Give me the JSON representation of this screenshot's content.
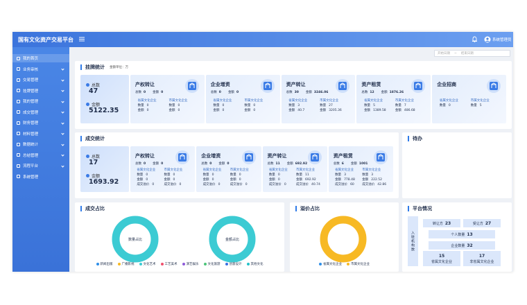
{
  "header": {
    "title": "国有文化资产交易平台",
    "user": "系统管理员"
  },
  "sidebar": {
    "items": [
      "我的首页",
      "业务审核",
      "交易管理",
      "挂牌管理",
      "我的管理",
      "成交管理",
      "财务管理",
      "材料管理",
      "数据统计",
      "总结管理",
      "流程平台",
      "系统管理"
    ]
  },
  "filters": {
    "start": "开始日期",
    "separator": "~",
    "end": "结束日期"
  },
  "listing": {
    "title": "挂牌统计",
    "unit": "金额单位：万",
    "summary": [
      {
        "label": "总数",
        "value": 47
      },
      {
        "label": "金额",
        "value": 5122.35
      }
    ],
    "cards": [
      {
        "name": "产权转让",
        "totals": [
          {
            "label": "总数",
            "value": 0
          },
          {
            "label": "金额",
            "value": 0
          }
        ],
        "groups": [
          {
            "name": "省属文化企业",
            "rows": [
              {
                "label": "数量",
                "value": 0
              },
              {
                "label": "金额",
                "value": 0
              }
            ]
          },
          {
            "name": "市属文化企业",
            "rows": [
              {
                "label": "数量",
                "value": 0
              },
              {
                "label": "金额",
                "value": 0
              }
            ]
          }
        ]
      },
      {
        "name": "企业增资",
        "totals": [
          {
            "label": "总数",
            "value": 0
          },
          {
            "label": "金额",
            "value": 0
          }
        ],
        "groups": [
          {
            "name": "省属文化企业",
            "rows": [
              {
                "label": "数量",
                "value": 0
              },
              {
                "label": "金额",
                "value": 0
              }
            ]
          },
          {
            "name": "市属文化企业",
            "rows": [
              {
                "label": "数量",
                "value": 0
              },
              {
                "label": "金额",
                "value": 0
              }
            ]
          }
        ]
      },
      {
        "name": "资产转让",
        "totals": [
          {
            "label": "总数",
            "value": 30
          },
          {
            "label": "金额",
            "value": 3246.06
          }
        ],
        "groups": [
          {
            "name": "省属文化企业",
            "rows": [
              {
                "label": "数量",
                "value": 3
              },
              {
                "label": "金额",
                "value": 40.7
              }
            ]
          },
          {
            "name": "市属文化企业",
            "rows": [
              {
                "label": "数量",
                "value": 27
              },
              {
                "label": "金额",
                "value": 3205.36
              }
            ]
          }
        ]
      },
      {
        "name": "资产租赁",
        "totals": [
          {
            "label": "总数",
            "value": 12
          },
          {
            "label": "金额",
            "value": 1876.26
          }
        ],
        "groups": [
          {
            "name": "省属文化企业",
            "rows": [
              {
                "label": "数量",
                "value": 5
              },
              {
                "label": "金额",
                "value": 1389.58
              }
            ]
          },
          {
            "name": "市属文化企业",
            "rows": [
              {
                "label": "数量",
                "value": 7
              },
              {
                "label": "金额",
                "value": 486.68
              }
            ]
          }
        ]
      },
      {
        "name": "企业招商",
        "groups": [
          {
            "name": "省属文化企业",
            "rows": [
              {
                "label": "数量",
                "value": 0
              }
            ]
          },
          {
            "name": "市属文化企业",
            "rows": [
              {
                "label": "数量",
                "value": 5
              }
            ]
          }
        ]
      }
    ]
  },
  "deals": {
    "title": "成交统计",
    "unit": "金额单位：万",
    "summary": [
      {
        "label": "总数",
        "value": 17
      },
      {
        "label": "金额",
        "value": 1693.92
      }
    ],
    "cards": [
      {
        "name": "产权转让",
        "totals": [
          {
            "label": "总数",
            "value": 0
          },
          {
            "label": "金额",
            "value": 0
          }
        ],
        "groups": [
          {
            "name": "省属文化企业",
            "rows": [
              {
                "label": "数量",
                "value": 0
              },
              {
                "label": "金额",
                "value": 0
              },
              {
                "label": "成交溢价",
                "value": 0
              }
            ]
          },
          {
            "name": "市属文化企业",
            "rows": [
              {
                "label": "数量",
                "value": 0
              },
              {
                "label": "金额",
                "value": 0
              },
              {
                "label": "成交溢价",
                "value": 0
              }
            ]
          }
        ]
      },
      {
        "name": "企业增资",
        "totals": [
          {
            "label": "总数",
            "value": 0
          },
          {
            "label": "金额",
            "value": 0
          }
        ],
        "groups": [
          {
            "name": "省属文化企业",
            "rows": [
              {
                "label": "数量",
                "value": 0
              },
              {
                "label": "金额",
                "value": 0
              },
              {
                "label": "成交溢价",
                "value": 0
              }
            ]
          },
          {
            "name": "市属文化企业",
            "rows": [
              {
                "label": "数量",
                "value": 0
              },
              {
                "label": "金额",
                "value": 0
              },
              {
                "label": "成交溢价",
                "value": 0
              }
            ]
          }
        ]
      },
      {
        "name": "资产转让",
        "totals": [
          {
            "label": "总数",
            "value": 11
          },
          {
            "label": "金额",
            "value": 692.92
          }
        ],
        "groups": [
          {
            "name": "省属文化企业",
            "rows": [
              {
                "label": "数量",
                "value": 0
              },
              {
                "label": "金额",
                "value": 0
              },
              {
                "label": "成交溢价",
                "value": 0
              }
            ]
          },
          {
            "name": "市属文化企业",
            "rows": [
              {
                "label": "数量",
                "value": 11
              },
              {
                "label": "金额",
                "value": 692.92
              },
              {
                "label": "成交溢价",
                "value": 40.74
              }
            ]
          }
        ]
      },
      {
        "name": "资产租赁",
        "totals": [
          {
            "label": "总数",
            "value": 6
          },
          {
            "label": "金额",
            "value": 1001
          }
        ],
        "groups": [
          {
            "name": "省属文化企业",
            "rows": [
              {
                "label": "数量",
                "value": 3
              },
              {
                "label": "金额",
                "value": 778.48
              },
              {
                "label": "成交溢价",
                "value": 60
              }
            ]
          },
          {
            "name": "市属文化企业",
            "rows": [
              {
                "label": "数量",
                "value": 3
              },
              {
                "label": "金额",
                "value": 222.52
              },
              {
                "label": "成交溢价",
                "value": 42.86
              }
            ]
          }
        ]
      }
    ]
  },
  "todo": {
    "title": "待办"
  },
  "share": {
    "title": "成交占比",
    "donuts": [
      {
        "label": "数量占比",
        "color": "#3ccbd3"
      },
      {
        "label": "金额占比",
        "color": "#3ccbd3"
      }
    ],
    "legend": [
      {
        "name": "新闻出版",
        "color": "#2f8fe8"
      },
      {
        "name": "广播影视",
        "color": "#f7b924"
      },
      {
        "name": "文化艺术",
        "color": "#3ccbd3"
      },
      {
        "name": "工艺美术",
        "color": "#f0506e"
      },
      {
        "name": "演艺娱乐",
        "color": "#8e5bd8"
      },
      {
        "name": "文化旅游",
        "color": "#4cc47a"
      },
      {
        "name": "创意设计",
        "color": "#3a6fe0"
      },
      {
        "name": "其他文化",
        "color": "#25c2c9"
      }
    ]
  },
  "premium": {
    "title": "溢价占比",
    "color": "#f7b924",
    "legend": [
      {
        "name": "省属文化企业",
        "color": "#2f8fe8"
      },
      {
        "name": "市属文化企业",
        "color": "#f7b924"
      }
    ]
  },
  "platform": {
    "title": "平台情况",
    "side_label": "入驻机构数",
    "cells": [
      {
        "label": "转让方",
        "value": 23
      },
      {
        "label": "受让方",
        "value": 27
      },
      {
        "label": "个人数量",
        "value": 13
      },
      {
        "label": "企业数量",
        "value": 32
      },
      {
        "label": "省属文化企业",
        "value": 15
      },
      {
        "label": "非省属文化企业",
        "value": 17
      }
    ]
  }
}
